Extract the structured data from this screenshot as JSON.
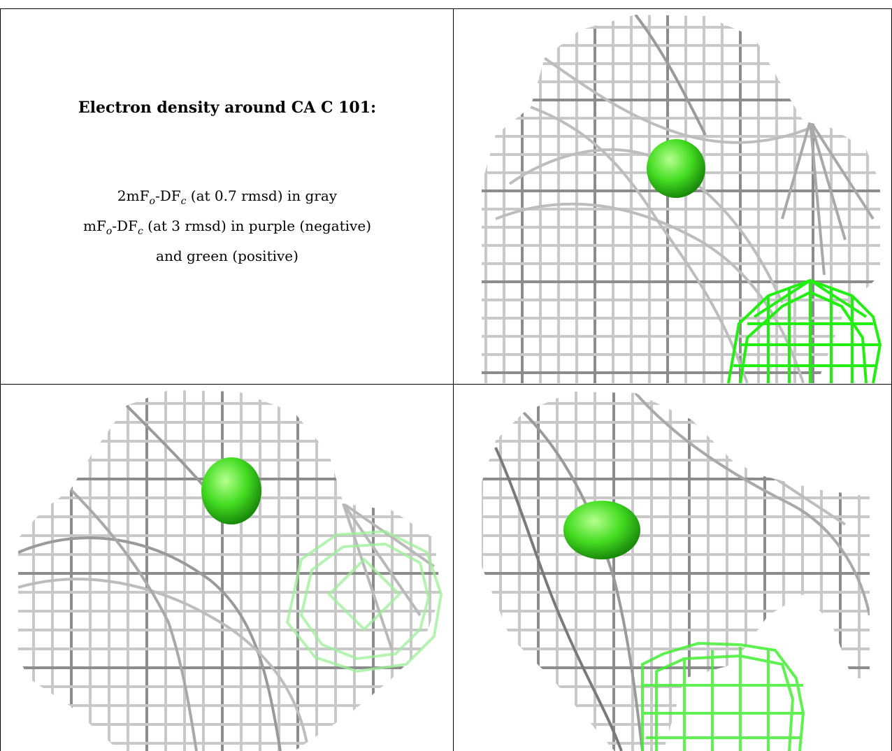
{
  "title": "Electron density around CA C 101:",
  "legend": {
    "line1": {
      "pre": "2mF",
      "sub1": "o",
      "mid": "-DF",
      "sub2": "c",
      "post": " (at 0.7 rmsd) in gray"
    },
    "line2": {
      "pre": "mF",
      "sub1": "o",
      "mid": "-DF",
      "sub2": "c",
      "post": " (at 3 rmsd) in purple (negative)"
    },
    "line3": "and green (positive)"
  },
  "colors": {
    "gray_mesh": "#c4c4c4",
    "gray_mesh_dark": "#7a7a7a",
    "green_mesh": "#22ee11",
    "green_sphere": "#44dd22",
    "border": "#000000"
  },
  "panels": [
    {
      "name": "view-top-right",
      "content": "gray mesh with green atom sphere and green positive-density mesh"
    },
    {
      "name": "view-bottom-left",
      "content": "gray mesh with green atom sphere and faded green mesh"
    },
    {
      "name": "view-bottom-right",
      "content": "gray mesh with green atom sphere and green mesh"
    }
  ]
}
